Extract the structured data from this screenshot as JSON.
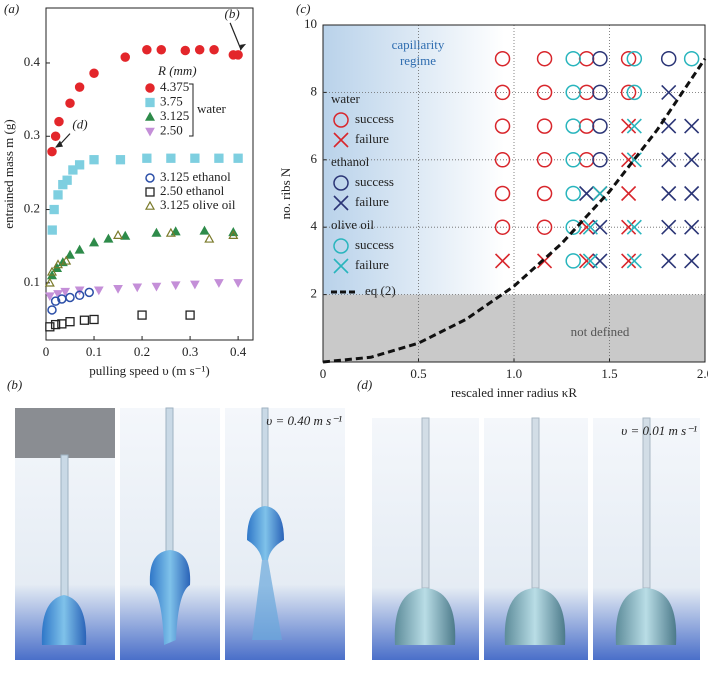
{
  "chart_data": [
    {
      "type": "scatter",
      "panel_label": "(a)",
      "x_label": "pulling speed υ (m s⁻¹)",
      "y_label": "entrained mass m (g)",
      "xlim": [
        0,
        0.431
      ],
      "ylim": [
        0.022,
        0.475
      ],
      "xticks": [
        0,
        0.1,
        0.2,
        0.3,
        0.4
      ],
      "yticks": [
        0.1,
        0.2,
        0.3,
        0.4
      ],
      "legend_title": "R (mm)",
      "legend_bracket": "water",
      "series": [
        {
          "name": "4.375",
          "color": "#e3262b",
          "marker": "circle-filled",
          "x": [
            0.0125,
            0.02,
            0.027,
            0.05,
            0.07,
            0.1,
            0.165,
            0.21,
            0.24,
            0.29,
            0.32,
            0.35,
            0.39,
            0.4
          ],
          "y": [
            0.279,
            0.3,
            0.32,
            0.345,
            0.367,
            0.386,
            0.408,
            0.418,
            0.418,
            0.417,
            0.418,
            0.418,
            0.411,
            0.411
          ]
        },
        {
          "name": "3.75",
          "color": "#7ecfe0",
          "marker": "square-filled",
          "x": [
            0.013,
            0.017,
            0.025,
            0.035,
            0.044,
            0.056,
            0.07,
            0.1,
            0.155,
            0.21,
            0.26,
            0.31,
            0.36,
            0.4
          ],
          "y": [
            0.172,
            0.2,
            0.22,
            0.234,
            0.24,
            0.254,
            0.261,
            0.268,
            0.268,
            0.27,
            0.27,
            0.27,
            0.27,
            0.27
          ]
        },
        {
          "name": "3.125",
          "color": "#2e8b4a",
          "marker": "triangle-filled",
          "x": [
            0.0125,
            0.023,
            0.035,
            0.05,
            0.07,
            0.1,
            0.13,
            0.165,
            0.23,
            0.27,
            0.33,
            0.39
          ],
          "y": [
            0.11,
            0.12,
            0.128,
            0.138,
            0.145,
            0.155,
            0.16,
            0.164,
            0.168,
            0.17,
            0.171,
            0.169
          ]
        },
        {
          "name": "2.50",
          "color": "#c48fd8",
          "marker": "triangle-down-filled",
          "x": [
            0.008,
            0.025,
            0.04,
            0.07,
            0.11,
            0.15,
            0.19,
            0.23,
            0.27,
            0.31,
            0.36,
            0.4
          ],
          "y": [
            0.082,
            0.085,
            0.088,
            0.09,
            0.09,
            0.092,
            0.094,
            0.095,
            0.097,
            0.098,
            0.1,
            0.1
          ]
        },
        {
          "name": "3.125  ethanol",
          "color": "#2c4fa8",
          "marker": "circle-open",
          "x": [
            0.0125,
            0.02,
            0.033,
            0.05,
            0.07,
            0.09
          ],
          "y": [
            0.063,
            0.075,
            0.078,
            0.08,
            0.083,
            0.087
          ]
        },
        {
          "name": "2.50  ethanol",
          "color": "#222222",
          "marker": "square-open",
          "x": [
            0.008,
            0.02,
            0.033,
            0.05,
            0.08,
            0.1,
            0.2,
            0.3
          ],
          "y": [
            0.04,
            0.043,
            0.044,
            0.047,
            0.049,
            0.05,
            0.056,
            0.056
          ]
        },
        {
          "name": "3.125  olive oil",
          "color": "#7a7a2a",
          "marker": "triangle-open",
          "x": [
            0.008,
            0.0125,
            0.025,
            0.042,
            0.15,
            0.26,
            0.34,
            0.39
          ],
          "y": [
            0.1,
            0.115,
            0.125,
            0.13,
            0.165,
            0.168,
            0.16,
            0.165
          ]
        }
      ],
      "annotations": [
        {
          "text": "(b)",
          "x": 0.4,
          "y": 0.411
        },
        {
          "text": "(d)",
          "x": 0.0125,
          "y": 0.279
        }
      ]
    },
    {
      "type": "scatter",
      "panel_label": "(c)",
      "x_label": "rescaled inner radius κR",
      "y_label": "no. ribs N",
      "xlim": [
        0,
        2
      ],
      "ylim": [
        0,
        10
      ],
      "xticks": [
        0,
        0.5,
        {
          "value": 1,
          "label": "1.0"
        },
        1.5,
        {
          "value": 2,
          "label": "2.0"
        }
      ],
      "yticks": [
        2,
        4,
        6,
        8,
        10
      ],
      "grid": true,
      "undefined_below": 2,
      "undefined_label": "not defined",
      "regime_label": [
        "capillarity",
        "regime"
      ],
      "series_groups": [
        {
          "name": "water",
          "color": "#d8262c",
          "series": [
            {
              "name": "success",
              "marker": "circle",
              "x": [
                0.94,
                1.16,
                1.38,
                1.6,
                0.94,
                1.16,
                1.38,
                1.6,
                0.94,
                1.16,
                1.38,
                0.94,
                1.16,
                1.38,
                0.94,
                1.16,
                0.94,
                1.16
              ],
              "y": [
                9,
                9,
                9,
                9,
                8,
                8,
                8,
                8,
                7,
                7,
                7,
                6,
                6,
                6,
                5,
                5,
                4,
                4
              ]
            },
            {
              "name": "failure",
              "marker": "cross",
              "x": [
                1.6,
                1.6,
                1.45,
                1.6,
                1.38,
                1.6,
                0.94,
                1.16,
                1.38,
                1.6
              ],
              "y": [
                7,
                6,
                5,
                5,
                4,
                4,
                3,
                3,
                3,
                3
              ]
            }
          ]
        },
        {
          "name": "ethanol",
          "color": "#2b3576",
          "series": [
            {
              "name": "success",
              "marker": "circle",
              "x": [
                1.45,
                1.81,
                1.45,
                1.45,
                1.45
              ],
              "y": [
                9,
                9,
                8,
                7,
                6
              ]
            },
            {
              "name": "failure",
              "marker": "cross",
              "x": [
                1.81,
                1.81,
                1.93,
                1.81,
                1.93,
                1.38,
                1.81,
                1.93,
                1.45,
                1.81,
                1.93,
                1.45,
                1.81,
                1.93
              ],
              "y": [
                8,
                7,
                7,
                6,
                6,
                5,
                5,
                5,
                4,
                4,
                4,
                3,
                3,
                3
              ]
            }
          ]
        },
        {
          "name": "olive oil",
          "color": "#29b5bd",
          "series": [
            {
              "name": "success",
              "marker": "circle",
              "x": [
                1.31,
                1.63,
                1.93,
                1.31,
                1.63,
                1.31,
                1.31,
                1.31,
                1.31,
                1.31
              ],
              "y": [
                9,
                9,
                9,
                8,
                8,
                7,
                6,
                5,
                4,
                3
              ]
            },
            {
              "name": "failure",
              "marker": "cross",
              "x": [
                1.63,
                1.63,
                1.45,
                1.4,
                1.63,
                1.4,
                1.63
              ],
              "y": [
                7,
                6,
                5,
                4,
                4,
                3,
                3
              ]
            }
          ]
        }
      ],
      "curve": {
        "name": "eq (2)",
        "color": "#111111",
        "x": [
          0,
          0.25,
          0.5,
          0.75,
          1,
          1.25,
          1.5,
          1.75,
          2
        ],
        "y": [
          0,
          0.14,
          0.56,
          1.27,
          2.25,
          3.52,
          5.06,
          6.89,
          9
        ]
      }
    }
  ],
  "photo_panels": [
    {
      "label": "(b)",
      "caption": "υ = 0.40 m s⁻¹"
    },
    {
      "label": "(d)",
      "caption": "υ = 0.01 m s⁻¹"
    }
  ]
}
